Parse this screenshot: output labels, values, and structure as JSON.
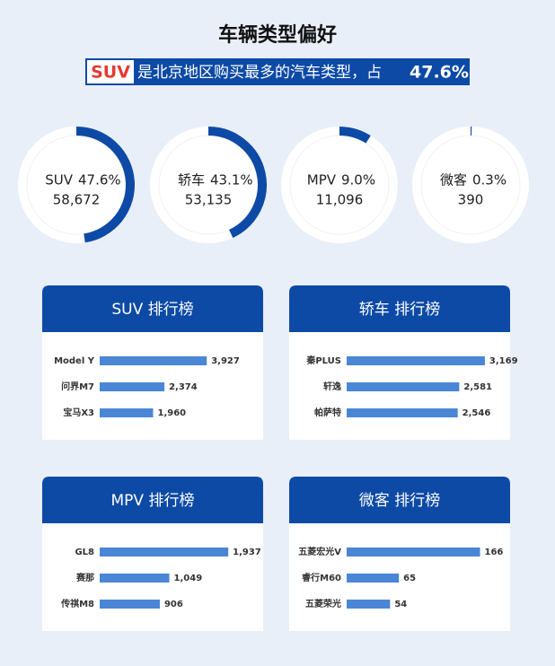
{
  "header": {
    "title": "车辆类型偏好",
    "subtitle_highlight": "SUV",
    "subtitle_text": "是北京地区购买最多的汽车类型，占",
    "subtitle_value": "47.6%"
  },
  "rings": [
    {
      "name": "SUV",
      "value": 47.6,
      "value_label": "47.6%",
      "count": 58672,
      "count_label": "58,672"
    },
    {
      "name": "轿车",
      "value": 43.1,
      "value_label": "43.1%",
      "count": 53135,
      "count_label": "53,135"
    },
    {
      "name": "MPV",
      "value": 9.0,
      "value_label": "9.0%",
      "count": 11096,
      "count_label": "11,096"
    },
    {
      "name": "微客",
      "value": 0.3,
      "value_label": "0.3%",
      "count": 390,
      "count_label": "390"
    }
  ],
  "panels": [
    {
      "title": "SUV 排行榜",
      "categories": [
        "Model Y",
        "问界M7",
        "宝马X3"
      ],
      "values": [
        3927,
        2374,
        1960
      ],
      "value_labels": [
        "3,927",
        "2,374",
        "1,960"
      ],
      "xlim": [
        0,
        5600
      ]
    },
    {
      "title": "轿车 排行榜",
      "categories": [
        "秦PLUS",
        "轩逸",
        "帕萨特"
      ],
      "values": [
        3169,
        2581,
        2546
      ],
      "value_labels": [
        "3,169",
        "2,581",
        "2,546"
      ],
      "xlim": [
        0,
        3500
      ]
    },
    {
      "title": "MPV 排行榜",
      "categories": [
        "GL8",
        "赛那",
        "传祺M8"
      ],
      "values": [
        1937,
        1049,
        906
      ],
      "value_labels": [
        "1,937",
        "1,049",
        "906"
      ],
      "xlim": [
        0,
        2300
      ]
    },
    {
      "title": "微客 排行榜",
      "categories": [
        "五菱宏光V",
        "睿行M60",
        "五菱荣光"
      ],
      "values": [
        166,
        65,
        54
      ],
      "xlim": [
        0,
        190
      ]
    }
  ]
}
